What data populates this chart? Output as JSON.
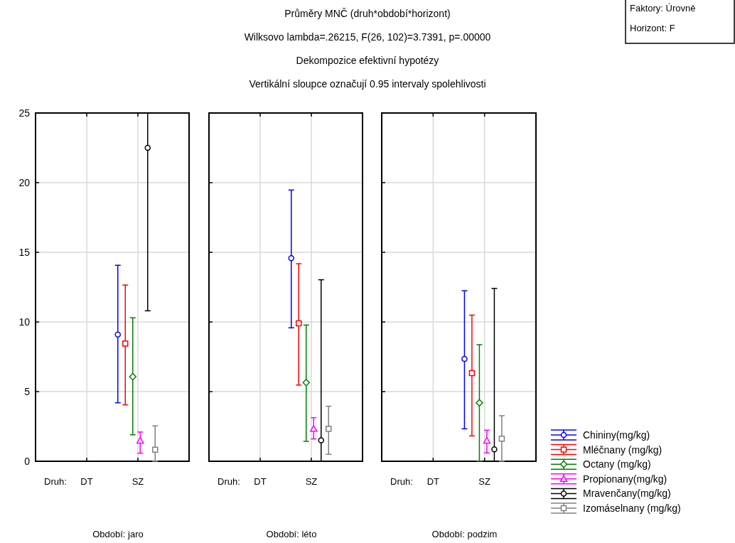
{
  "chart_data": [
    {
      "type": "scatter",
      "xlabel": "Druh:",
      "annotations": [
        "Průměry MNČ (druh*období*horizont)",
        "Wilksovo lambda=.26215, F(26, 102)=3.7391, p=.00000",
        "Dekompozice efektivní hypotézy",
        "Vertikální sloupce označují 0.95 intervaly spolehlivosti",
        "Faktory: Úrovně",
        "Horizont: F",
        "Období: jaro"
      ],
      "categories": [
        "DT",
        "SZ"
      ],
      "ylim": [
        0,
        25
      ],
      "yticks": [
        0,
        5,
        10,
        15,
        20,
        25
      ],
      "grid": true,
      "series": [
        {
          "color": "#0000ff",
          "marker": "circle",
          "values": [
            null,
            9.1
          ],
          "errors": [
            null,
            [
              4.2,
              14.07
            ]
          ]
        },
        {
          "color": "#ff0000",
          "marker": "square",
          "values": [
            null,
            8.45
          ],
          "errors": [
            null,
            [
              4.05,
              12.65
            ]
          ]
        },
        {
          "color": "#008000",
          "marker": "diamond",
          "values": [
            null,
            6.07
          ],
          "errors": [
            null,
            [
              1.9,
              10.3
            ]
          ]
        },
        {
          "color": "#ff00ff",
          "marker": "triangle",
          "values": [
            null,
            1.48
          ],
          "errors": [
            null,
            [
              0.58,
              2.1
            ]
          ]
        },
        {
          "color": "#000000",
          "marker": "circle",
          "values": [
            null,
            22.5
          ],
          "errors": [
            null,
            [
              10.8,
              25
            ]
          ]
        },
        {
          "color": "#808080",
          "marker": "square",
          "values": [
            null,
            0.83
          ],
          "errors": [
            null,
            [
              0,
              2.54
            ]
          ]
        }
      ]
    },
    {
      "type": "scatter",
      "xlabel": "Druh:",
      "annotations": [
        "Období: léto"
      ],
      "categories": [
        "DT",
        "SZ"
      ],
      "ylim": [
        0,
        25
      ],
      "yticks": [
        0,
        5,
        10,
        15,
        20,
        25
      ],
      "tick_labels": "x",
      "grid": true,
      "series": [
        {
          "color": "#0000ff",
          "marker": "circle",
          "values": [
            null,
            14.58
          ],
          "errors": [
            null,
            [
              9.58,
              19.47
            ]
          ]
        },
        {
          "color": "#ff0000",
          "marker": "square",
          "values": [
            null,
            9.9
          ],
          "errors": [
            null,
            [
              5.47,
              14.18
            ]
          ]
        },
        {
          "color": "#008000",
          "marker": "diamond",
          "values": [
            null,
            5.65
          ],
          "errors": [
            null,
            [
              1.43,
              9.78
            ]
          ]
        },
        {
          "color": "#ff00ff",
          "marker": "triangle",
          "values": [
            null,
            2.33
          ],
          "errors": [
            null,
            [
              1.6,
              3.13
            ]
          ]
        },
        {
          "color": "#000000",
          "marker": "circle",
          "values": [
            null,
            1.51
          ],
          "errors": [
            null,
            [
              0,
              13.03
            ]
          ]
        },
        {
          "color": "#808080",
          "marker": "square",
          "values": [
            null,
            2.33
          ],
          "errors": [
            null,
            [
              0.5,
              3.95
            ]
          ]
        }
      ]
    },
    {
      "type": "scatter",
      "xlabel": "Druh:",
      "annotations": [
        "Období: podzim"
      ],
      "categories": [
        "DT",
        "SZ"
      ],
      "ylim": [
        0,
        25
      ],
      "yticks": [
        0,
        5,
        10,
        15,
        20,
        25
      ],
      "tick_labels": "x",
      "grid": true,
      "legend": "bottom right",
      "series": [
        {
          "name": "Chininy(mg/kg)",
          "color": "#0000ff",
          "marker": "circle",
          "values": [
            null,
            7.35
          ],
          "errors": [
            null,
            [
              2.33,
              12.24
            ]
          ]
        },
        {
          "name": "Mléčnany (mg/kg)",
          "color": "#ff0000",
          "marker": "square",
          "values": [
            null,
            6.33
          ],
          "errors": [
            null,
            [
              1.82,
              10.49
            ]
          ]
        },
        {
          "name": "Octany (mg/kg)",
          "color": "#008000",
          "marker": "diamond",
          "values": [
            null,
            4.2
          ],
          "errors": [
            null,
            [
              0,
              8.37
            ]
          ]
        },
        {
          "name": "Propionany(mg/kg)",
          "color": "#ff00ff",
          "marker": "triangle",
          "values": [
            null,
            1.48
          ],
          "errors": [
            null,
            [
              0.6,
              2.23
            ]
          ]
        },
        {
          "name": "Mravenčany(mg/kg)",
          "color": "#000000",
          "marker": "circle",
          "values": [
            null,
            0.85
          ],
          "errors": [
            null,
            [
              0,
              12.41
            ]
          ]
        },
        {
          "name": "Izomáselnany (mg/kg)",
          "color": "#808080",
          "marker": "square",
          "values": [
            null,
            1.62
          ],
          "errors": [
            null,
            [
              0,
              3.27
            ]
          ]
        }
      ]
    }
  ]
}
